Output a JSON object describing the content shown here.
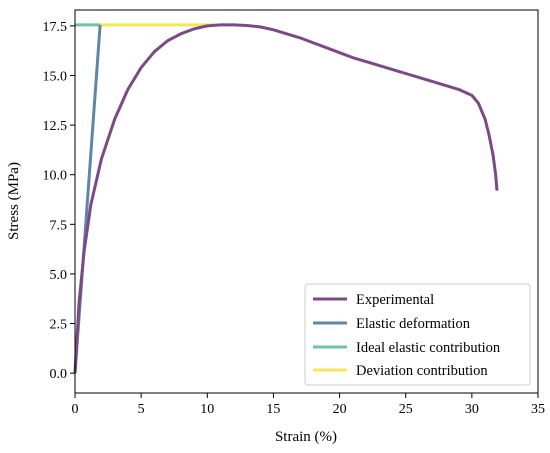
{
  "chart_data": {
    "type": "line",
    "xlabel": "Strain (%)",
    "ylabel": "Stress (MPa)",
    "xlim": [
      0,
      35
    ],
    "ylim": [
      -1.0,
      18.3
    ],
    "x_ticks": [
      0,
      5,
      10,
      15,
      20,
      25,
      30,
      35
    ],
    "x_tick_labels": [
      "0",
      "5",
      "10",
      "15",
      "20",
      "25",
      "30",
      "35"
    ],
    "y_ticks": [
      0,
      2.5,
      5,
      7.5,
      10,
      12.5,
      15,
      17.5
    ],
    "y_tick_labels": [
      "0.0",
      "2.5",
      "5.0",
      "7.5",
      "10.0",
      "12.5",
      "15.0",
      "17.5"
    ],
    "grid": false,
    "legend_position": "lower-right",
    "series": [
      {
        "name": "Experimental",
        "color": "#7b4a85",
        "x": [
          0,
          0.3,
          0.7,
          1.2,
          2,
          3,
          4,
          5,
          6,
          7,
          8,
          9,
          10,
          11,
          12,
          13,
          14,
          15,
          16,
          17,
          18,
          19,
          20,
          21,
          22,
          23,
          24,
          25,
          26,
          27,
          28,
          29,
          30,
          30.5,
          31,
          31.3,
          31.6,
          31.8,
          31.9
        ],
        "y": [
          0,
          3.5,
          6.2,
          8.5,
          10.8,
          12.8,
          14.3,
          15.4,
          16.2,
          16.75,
          17.1,
          17.35,
          17.5,
          17.55,
          17.55,
          17.52,
          17.45,
          17.3,
          17.1,
          16.9,
          16.65,
          16.4,
          16.15,
          15.9,
          15.7,
          15.5,
          15.3,
          15.1,
          14.9,
          14.7,
          14.5,
          14.3,
          14.0,
          13.6,
          12.8,
          12.0,
          11.0,
          10.0,
          9.2
        ]
      },
      {
        "name": "Elastic deformation",
        "color": "#5f86a8",
        "x": [
          0,
          1.9
        ],
        "y": [
          0,
          17.55
        ]
      },
      {
        "name": "Ideal elastic contribution",
        "color": "#6bc59e",
        "x": [
          0,
          1.9
        ],
        "y": [
          17.55,
          17.55
        ]
      },
      {
        "name": "Deviation contribution",
        "color": "#f7e55c",
        "x": [
          1.9,
          12.1
        ],
        "y": [
          17.55,
          17.55
        ]
      }
    ]
  }
}
